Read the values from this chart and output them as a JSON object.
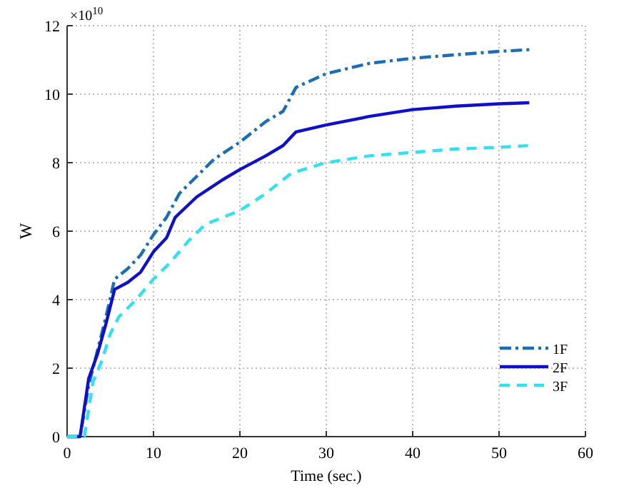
{
  "chart_data": {
    "type": "line",
    "xlabel": "Time (sec.)",
    "ylabel": "W",
    "annotations": [
      "×10$^{10}$"
    ],
    "xlim": [
      0,
      60
    ],
    "xticks": [
      0,
      10,
      20,
      30,
      40,
      50,
      60
    ],
    "ylim": [
      0,
      12
    ],
    "yticks": [
      0,
      2,
      4,
      6,
      8,
      10,
      12
    ],
    "grid": true,
    "legend": "bottom right",
    "series": [
      {
        "name": "1F",
        "color": "#1c6eb4",
        "line_style": "dashdot",
        "x": [
          0,
          1.5,
          2.5,
          3.5,
          4.5,
          5.5,
          7,
          8.5,
          10,
          11.5,
          13,
          15,
          17,
          20,
          23,
          25,
          26.5,
          30,
          35,
          40,
          45,
          50,
          53.5
        ],
        "values": [
          0,
          0,
          1.5,
          2.5,
          3.5,
          4.6,
          4.9,
          5.3,
          5.9,
          6.4,
          7.1,
          7.6,
          8.1,
          8.6,
          9.2,
          9.5,
          10.2,
          10.6,
          10.9,
          11.05,
          11.15,
          11.25,
          11.3
        ]
      },
      {
        "name": "2F",
        "color": "#1010c8",
        "line_style": "solid",
        "x": [
          0,
          1.5,
          2.5,
          3.5,
          4.5,
          5.5,
          7,
          8.5,
          10,
          11.5,
          12.5,
          15,
          18,
          20,
          23,
          25,
          26.5,
          30,
          35,
          40,
          45,
          50,
          53.5
        ],
        "values": [
          0,
          0,
          1.7,
          2.4,
          3.3,
          4.3,
          4.5,
          4.8,
          5.4,
          5.8,
          6.4,
          7.0,
          7.5,
          7.8,
          8.2,
          8.5,
          8.9,
          9.1,
          9.35,
          9.55,
          9.65,
          9.72,
          9.75
        ]
      },
      {
        "name": "3F",
        "color": "#33e0f0",
        "line_style": "dashed",
        "x": [
          0,
          2,
          3,
          4,
          5,
          6,
          8,
          10,
          12,
          14,
          16,
          20,
          23,
          26,
          30,
          35,
          40,
          45,
          50,
          53.5
        ],
        "values": [
          0,
          0,
          1.6,
          2.2,
          3.0,
          3.5,
          4.0,
          4.6,
          5.1,
          5.7,
          6.2,
          6.6,
          7.1,
          7.7,
          8.0,
          8.2,
          8.3,
          8.4,
          8.45,
          8.5
        ]
      }
    ]
  }
}
